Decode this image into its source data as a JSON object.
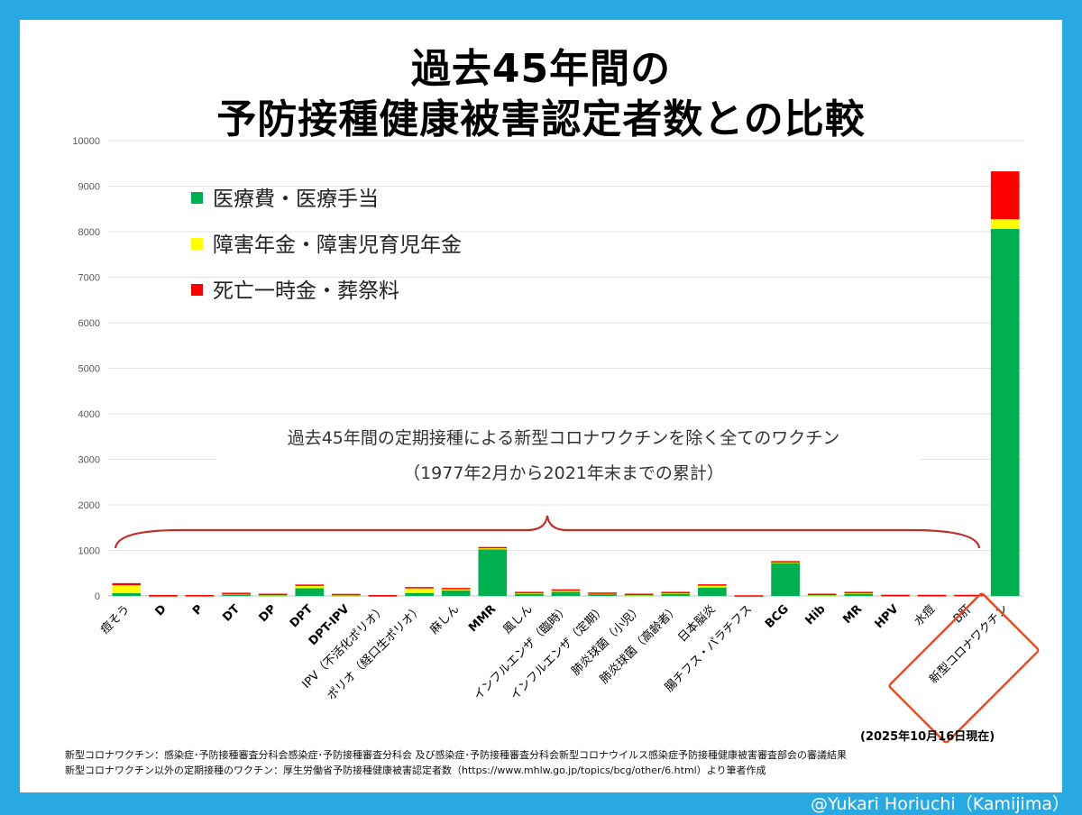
{
  "header": {
    "title_line1": "過去45年間の",
    "title_line2": "予防接種健康被害認定者数との比較"
  },
  "colors": {
    "medical": "#00b050",
    "disability": "#ffff00",
    "death": "#ff0000",
    "frame": "#29a9e1",
    "bracket": "#c0302a"
  },
  "chart_data": {
    "type": "bar",
    "stacked": true,
    "ylim": [
      0,
      10000
    ],
    "yticks": [
      "0",
      "1000",
      "2000",
      "3000",
      "4000",
      "5000",
      "6000",
      "7000",
      "8000",
      "9000",
      "10000"
    ],
    "grid": true,
    "legend_position": "top-left",
    "categories": [
      "痘そう",
      "D",
      "P",
      "DT",
      "DP",
      "DPT",
      "DPT-IPV",
      "IPV（不活化ポリオ）",
      "ポリオ（経口生ポリオ）",
      "麻しん",
      "MMR",
      "風しん",
      "インフルエンザ（臨時）",
      "インフルエンザ（定期）",
      "肺炎球菌（小児）",
      "肺炎球菌（高齢者）",
      "日本脳炎",
      "腸チフス・パラチフス",
      "BCG",
      "Hib",
      "MR",
      "HPV",
      "水痘",
      "B肝",
      "新型コロナワクチン"
    ],
    "series": [
      {
        "name": "医療費・医療手当",
        "color": "#00b050",
        "values": [
          60,
          5,
          5,
          45,
          25,
          170,
          25,
          10,
          65,
          120,
          1030,
          60,
          90,
          55,
          30,
          65,
          185,
          5,
          740,
          30,
          65,
          15,
          12,
          15,
          8060
        ]
      },
      {
        "name": "障害年金・障害児育児年金",
        "color": "#ffff00",
        "values": [
          175,
          10,
          5,
          15,
          15,
          50,
          10,
          5,
          100,
          30,
          20,
          15,
          30,
          10,
          10,
          10,
          45,
          5,
          10,
          10,
          10,
          8,
          5,
          5,
          215
        ]
      },
      {
        "name": "死亡一時金・葬祭料",
        "color": "#ff0000",
        "values": [
          45,
          5,
          10,
          10,
          10,
          30,
          10,
          5,
          30,
          25,
          25,
          15,
          25,
          10,
          10,
          15,
          25,
          5,
          15,
          10,
          15,
          4,
          8,
          5,
          1050
        ]
      }
    ],
    "annotation_line1": "過去45年間の定期接種による新型コロナワクチンを除く全てのワクチン",
    "annotation_line2": "（1977年2月から2021年末までの累計）"
  },
  "footer": {
    "as_of": "(2025年10月16日現在)",
    "source1": "新型コロナワクチン：感染症･予防接種審査分科会感染症･予防接種審査分科会 及び感染症･予防接種審査分科会新型コロナウイルス感染症予防接種健康被害審査部会の審議結果",
    "source2": "新型コロナワクチン以外の定期接種のワクチン：厚生労働省予防接種健康被害認定者数（https://www.mhlw.go.jp/topics/bcg/other/6.html）より筆者作成",
    "credit": "@Yukari Horiuchi（Kamijima）"
  }
}
